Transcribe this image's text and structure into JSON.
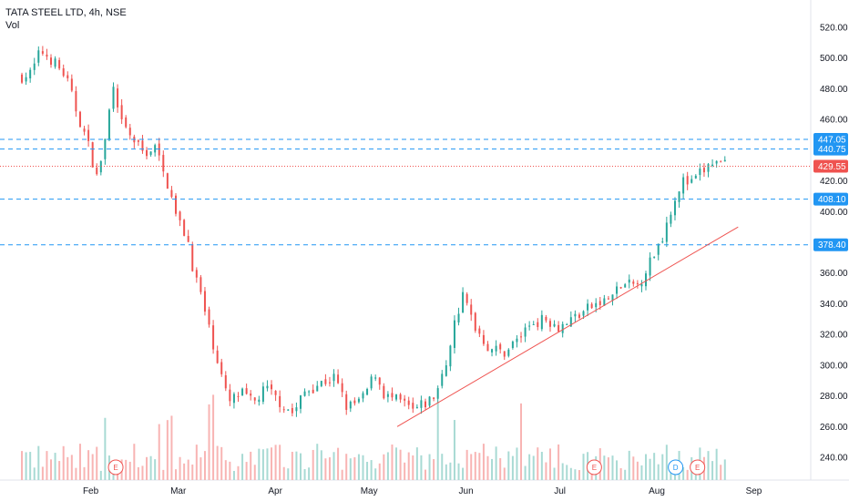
{
  "header": {
    "title": "TATA STEEL LTD, 4h, NSE",
    "volume_label": "Vol"
  },
  "colors": {
    "up": "#26a69a",
    "down": "#ef5350",
    "level": "#2196f3",
    "last": "#ef5350",
    "up_vol": "#a8dad4",
    "down_vol": "#f8b4b3"
  },
  "chart_data": {
    "type": "candlestick",
    "title": "TATA STEEL LTD, 4h, NSE",
    "y_ticks": [
      "240.00",
      "260.00",
      "280.00",
      "300.00",
      "320.00",
      "340.00",
      "360.00",
      "380.00",
      "400.00",
      "420.00",
      "440.00",
      "460.00",
      "480.00",
      "500.00",
      "520.00"
    ],
    "ylim": [
      226,
      530
    ],
    "x_ticks": [
      "Feb",
      "Mar",
      "Apr",
      "May",
      "Jun",
      "Jul",
      "Aug",
      "Sep"
    ],
    "horizontal_levels": [
      {
        "label": "447.05",
        "value": 447.05,
        "style": "dashed"
      },
      {
        "label": "440.75",
        "value": 440.75,
        "style": "dashed"
      },
      {
        "label": "408.10",
        "value": 408.1,
        "style": "dashed"
      },
      {
        "label": "378.40",
        "value": 378.4,
        "style": "dashed"
      }
    ],
    "last_price": {
      "label": "429.55",
      "value": 429.55
    },
    "trendline": {
      "from": {
        "date": "2022-05-10",
        "price": 260
      },
      "to": {
        "date": "2022-08-27",
        "price": 390
      }
    },
    "events": [
      {
        "label": "E",
        "date": "2022-02-09"
      },
      {
        "label": "E",
        "date": "2022-07-12"
      },
      {
        "label": "D",
        "date": "2022-08-07"
      },
      {
        "label": "E",
        "date": "2022-08-14"
      }
    ],
    "anchors": [
      [
        "2022-01-10",
        488
      ],
      [
        "2022-01-13",
        490
      ],
      [
        "2022-01-16",
        505
      ],
      [
        "2022-01-20",
        498
      ],
      [
        "2022-01-24",
        488
      ],
      [
        "2022-01-28",
        462
      ],
      [
        "2022-01-31",
        445
      ],
      [
        "2022-02-03",
        422
      ],
      [
        "2022-02-06",
        450
      ],
      [
        "2022-02-08",
        482
      ],
      [
        "2022-02-10",
        460
      ],
      [
        "2022-02-14",
        448
      ],
      [
        "2022-02-18",
        438
      ],
      [
        "2022-02-22",
        442
      ],
      [
        "2022-02-24",
        425
      ],
      [
        "2022-02-27",
        412
      ],
      [
        "2022-02-28",
        398
      ],
      [
        "2022-03-04",
        382
      ],
      [
        "2022-03-06",
        360
      ],
      [
        "2022-03-08",
        348
      ],
      [
        "2022-03-10",
        330
      ],
      [
        "2022-03-14",
        300
      ],
      [
        "2022-03-17",
        275
      ],
      [
        "2022-03-21",
        282
      ],
      [
        "2022-03-25",
        275
      ],
      [
        "2022-03-29",
        285
      ],
      [
        "2022-04-03",
        275
      ],
      [
        "2022-04-07",
        268
      ],
      [
        "2022-04-10",
        282
      ],
      [
        "2022-04-15",
        288
      ],
      [
        "2022-04-20",
        292
      ],
      [
        "2022-04-24",
        272
      ],
      [
        "2022-04-29",
        278
      ],
      [
        "2022-05-03",
        295
      ],
      [
        "2022-05-06",
        280
      ],
      [
        "2022-05-12",
        275
      ],
      [
        "2022-05-15",
        270
      ],
      [
        "2022-05-19",
        275
      ],
      [
        "2022-05-22",
        280
      ],
      [
        "2022-05-25",
        295
      ],
      [
        "2022-05-28",
        325
      ],
      [
        "2022-05-31",
        345
      ],
      [
        "2022-06-04",
        325
      ],
      [
        "2022-06-08",
        312
      ],
      [
        "2022-06-13",
        308
      ],
      [
        "2022-06-18",
        318
      ],
      [
        "2022-06-22",
        328
      ],
      [
        "2022-06-27",
        330
      ],
      [
        "2022-07-01",
        325
      ],
      [
        "2022-07-06",
        332
      ],
      [
        "2022-07-11",
        338
      ],
      [
        "2022-07-16",
        342
      ],
      [
        "2022-07-21",
        352
      ],
      [
        "2022-07-26",
        352
      ],
      [
        "2022-07-30",
        368
      ],
      [
        "2022-08-03",
        385
      ],
      [
        "2022-08-06",
        405
      ],
      [
        "2022-08-09",
        420
      ],
      [
        "2022-08-12",
        418
      ],
      [
        "2022-08-15",
        425
      ],
      [
        "2022-08-19",
        432
      ],
      [
        "2022-08-23",
        429.55
      ]
    ]
  }
}
